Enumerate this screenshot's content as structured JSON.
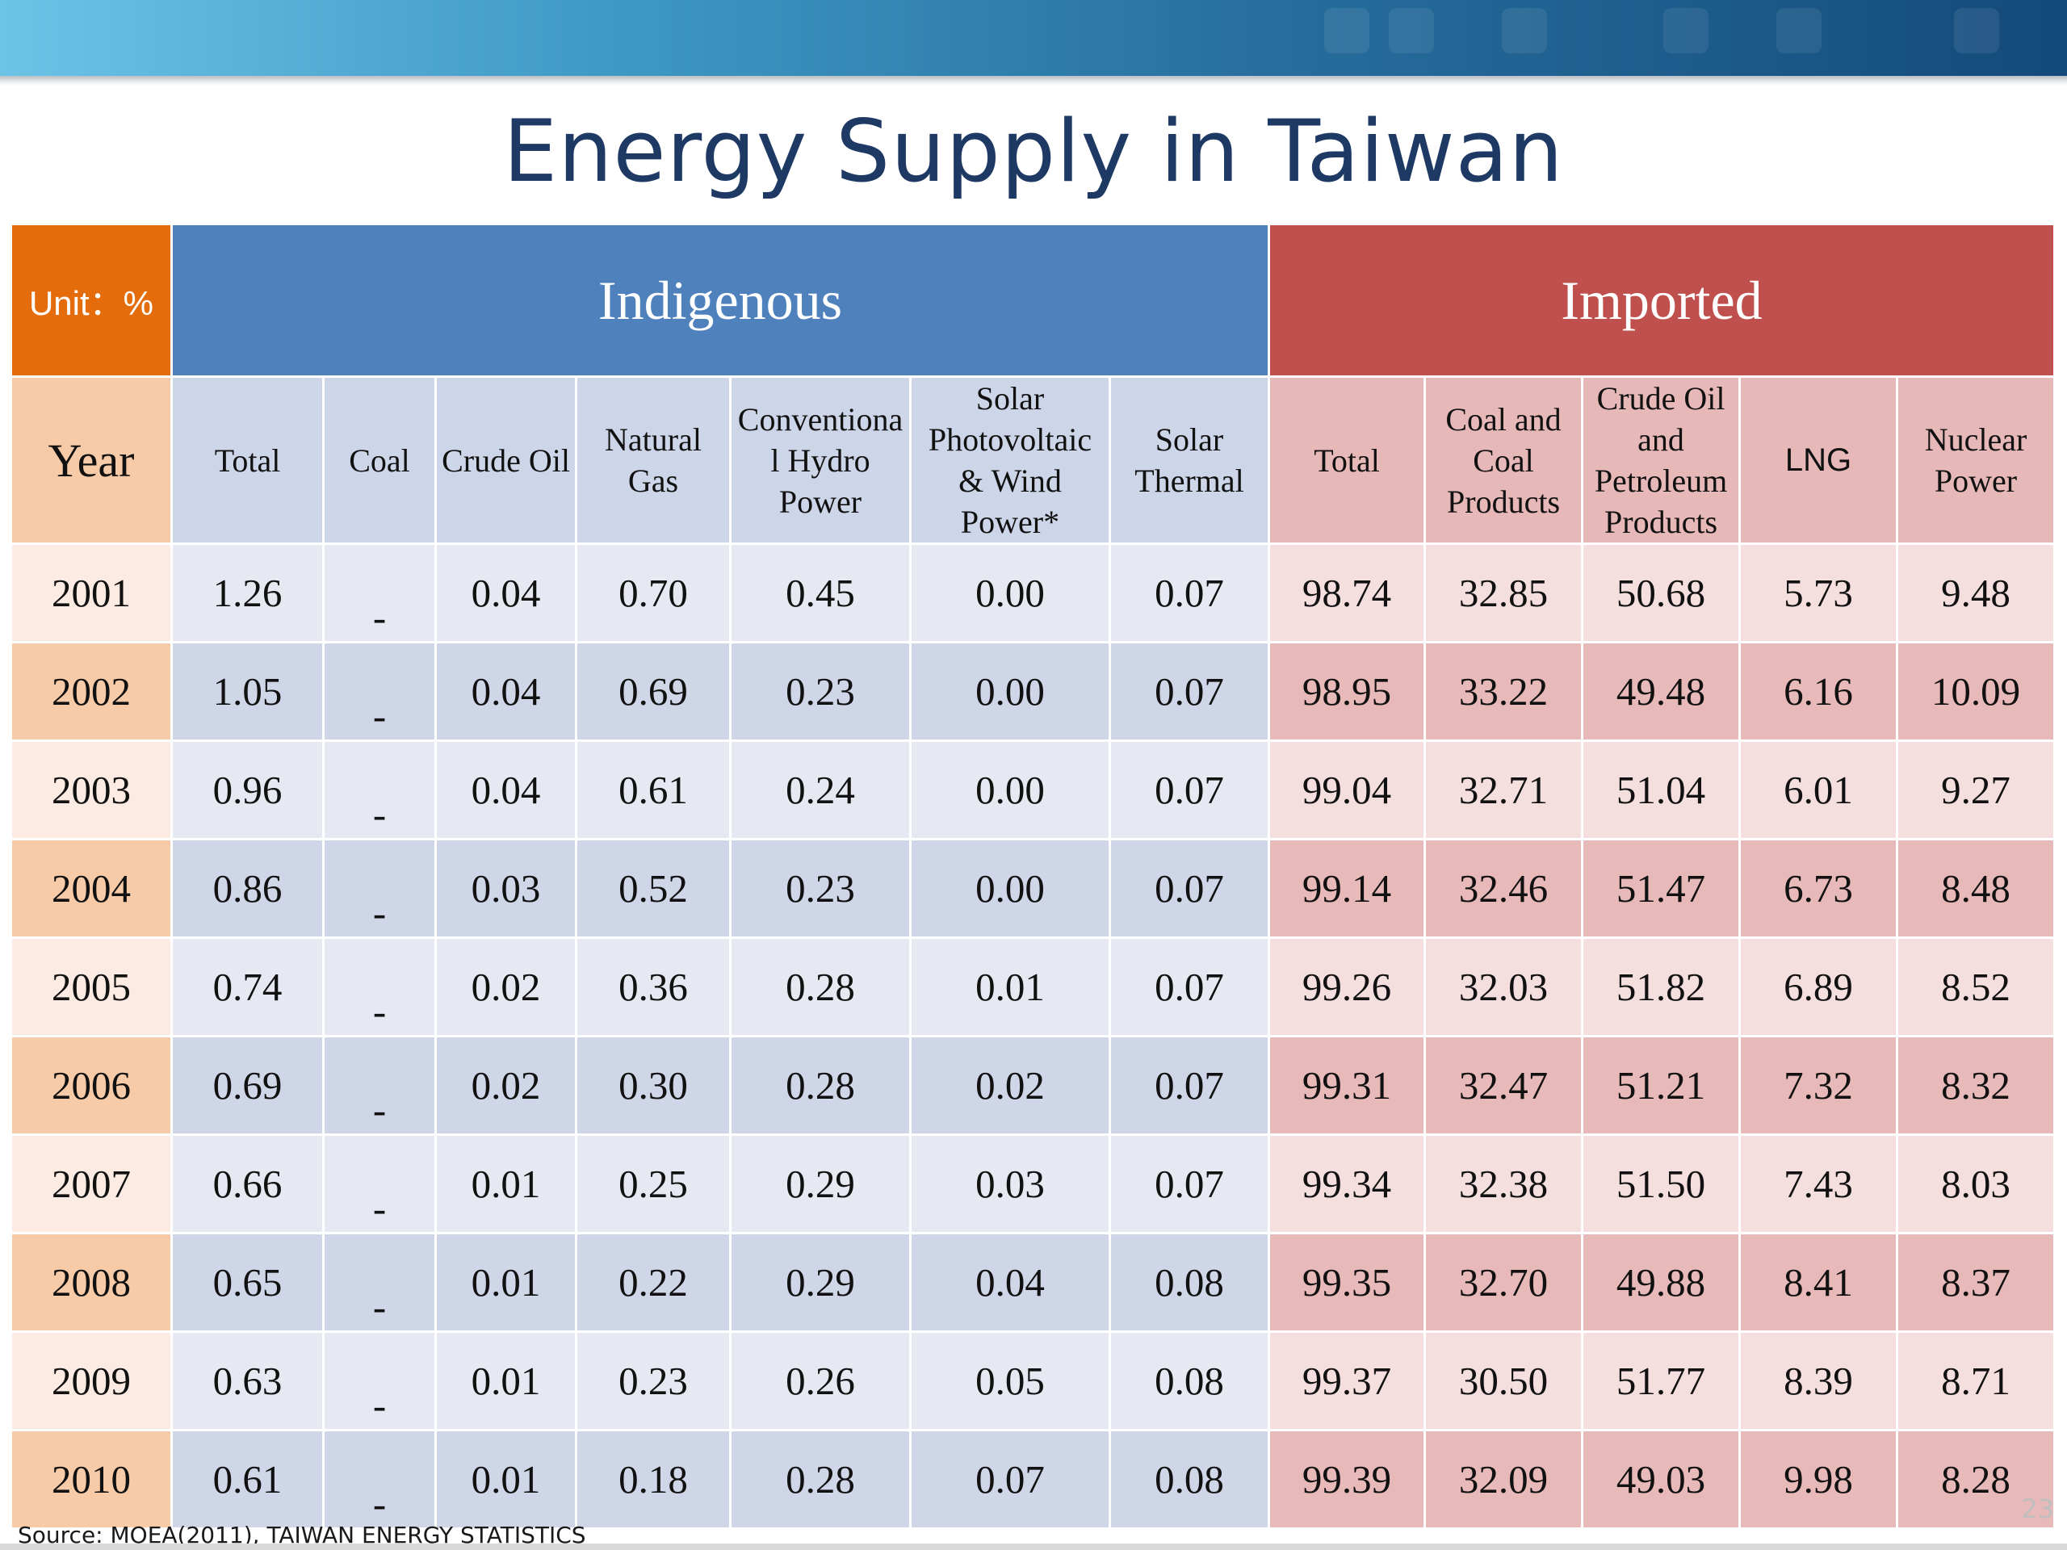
{
  "title": "Energy Supply in Taiwan",
  "unit_label": "Unit：%",
  "groups": {
    "indigenous": "Indigenous",
    "imported": "Imported"
  },
  "columns": {
    "year": "Year",
    "ind_total": "Total",
    "coal": "Coal",
    "crude_oil": "Crude Oil",
    "natural_gas": [
      "Natural",
      "Gas"
    ],
    "hydro": [
      "Conventiona",
      "l Hydro",
      "Power"
    ],
    "solar_pv": [
      "Solar",
      "Photovoltaic",
      "& Wind",
      "Power*"
    ],
    "solar_thermal": [
      "Solar",
      "Thermal"
    ],
    "imp_total": "Total",
    "coal_products": [
      "Coal and",
      "Coal",
      "Products"
    ],
    "petroleum": [
      "Crude Oil",
      "and",
      "Petroleum",
      "Products"
    ],
    "lng": "LNG",
    "nuclear": [
      "Nuclear",
      "Power"
    ]
  },
  "rows": [
    {
      "year": "2001",
      "ind_total": "1.26",
      "coal": "-",
      "crude_oil": "0.04",
      "natural_gas": "0.70",
      "hydro": "0.45",
      "solar_pv": "0.00",
      "solar_thermal": "0.07",
      "imp_total": "98.74",
      "coal_products": "32.85",
      "petroleum": "50.68",
      "lng": "5.73",
      "nuclear": "9.48"
    },
    {
      "year": "2002",
      "ind_total": "1.05",
      "coal": "-",
      "crude_oil": "0.04",
      "natural_gas": "0.69",
      "hydro": "0.23",
      "solar_pv": "0.00",
      "solar_thermal": "0.07",
      "imp_total": "98.95",
      "coal_products": "33.22",
      "petroleum": "49.48",
      "lng": "6.16",
      "nuclear": "10.09"
    },
    {
      "year": "2003",
      "ind_total": "0.96",
      "coal": "-",
      "crude_oil": "0.04",
      "natural_gas": "0.61",
      "hydro": "0.24",
      "solar_pv": "0.00",
      "solar_thermal": "0.07",
      "imp_total": "99.04",
      "coal_products": "32.71",
      "petroleum": "51.04",
      "lng": "6.01",
      "nuclear": "9.27"
    },
    {
      "year": "2004",
      "ind_total": "0.86",
      "coal": "-",
      "crude_oil": "0.03",
      "natural_gas": "0.52",
      "hydro": "0.23",
      "solar_pv": "0.00",
      "solar_thermal": "0.07",
      "imp_total": "99.14",
      "coal_products": "32.46",
      "petroleum": "51.47",
      "lng": "6.73",
      "nuclear": "8.48"
    },
    {
      "year": "2005",
      "ind_total": "0.74",
      "coal": "-",
      "crude_oil": "0.02",
      "natural_gas": "0.36",
      "hydro": "0.28",
      "solar_pv": "0.01",
      "solar_thermal": "0.07",
      "imp_total": "99.26",
      "coal_products": "32.03",
      "petroleum": "51.82",
      "lng": "6.89",
      "nuclear": "8.52"
    },
    {
      "year": "2006",
      "ind_total": "0.69",
      "coal": "-",
      "crude_oil": "0.02",
      "natural_gas": "0.30",
      "hydro": "0.28",
      "solar_pv": "0.02",
      "solar_thermal": "0.07",
      "imp_total": "99.31",
      "coal_products": "32.47",
      "petroleum": "51.21",
      "lng": "7.32",
      "nuclear": "8.32"
    },
    {
      "year": "2007",
      "ind_total": "0.66",
      "coal": "-",
      "crude_oil": "0.01",
      "natural_gas": "0.25",
      "hydro": "0.29",
      "solar_pv": "0.03",
      "solar_thermal": "0.07",
      "imp_total": "99.34",
      "coal_products": "32.38",
      "petroleum": "51.50",
      "lng": "7.43",
      "nuclear": "8.03"
    },
    {
      "year": "2008",
      "ind_total": "0.65",
      "coal": "-",
      "crude_oil": "0.01",
      "natural_gas": "0.22",
      "hydro": "0.29",
      "solar_pv": "0.04",
      "solar_thermal": "0.08",
      "imp_total": "99.35",
      "coal_products": "32.70",
      "petroleum": "49.88",
      "lng": "8.41",
      "nuclear": "8.37"
    },
    {
      "year": "2009",
      "ind_total": "0.63",
      "coal": "-",
      "crude_oil": "0.01",
      "natural_gas": "0.23",
      "hydro": "0.26",
      "solar_pv": "0.05",
      "solar_thermal": "0.08",
      "imp_total": "99.37",
      "coal_products": "30.50",
      "petroleum": "51.77",
      "lng": "8.39",
      "nuclear": "8.71"
    },
    {
      "year": "2010",
      "ind_total": "0.61",
      "coal": "-",
      "crude_oil": "0.01",
      "natural_gas": "0.18",
      "hydro": "0.28",
      "solar_pv": "0.07",
      "solar_thermal": "0.08",
      "imp_total": "99.39",
      "coal_products": "32.09",
      "petroleum": "49.03",
      "lng": "9.98",
      "nuclear": "8.28"
    }
  ],
  "source": "Source: MOEA(2011), TAIWAN ENERGY STATISTICS",
  "page_number": "23",
  "colors": {
    "unit": "#e46c0a",
    "indigenous": "#4f81bd",
    "imported": "#c0504d",
    "title": "#1e3a64"
  }
}
